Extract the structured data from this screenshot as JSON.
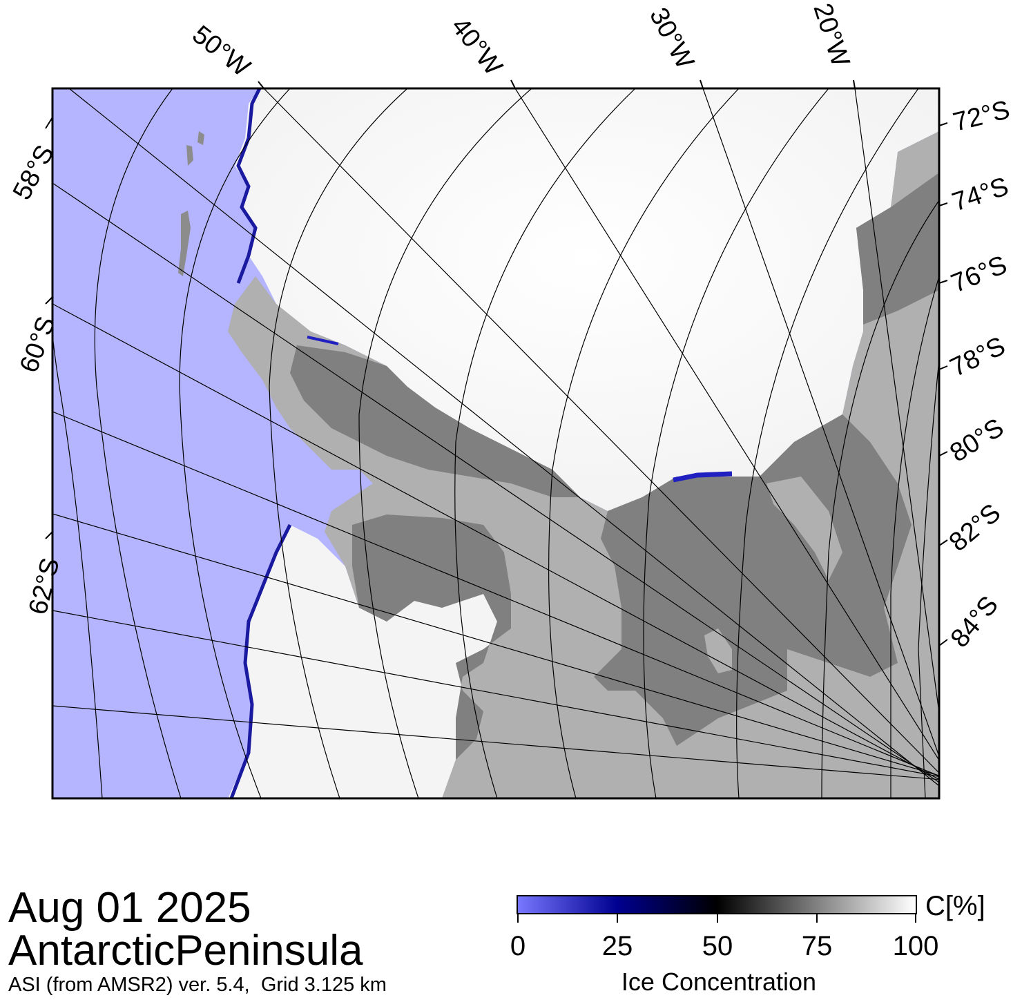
{
  "title": {
    "date": "Aug 01 2025",
    "region": "AntarcticPeninsula",
    "source": "ASI (from AMSR2) ver. 5.4,  Grid 3.125 km"
  },
  "map": {
    "longitude_labels": [
      "50°W",
      "40°W",
      "30°W",
      "20°W"
    ],
    "latitude_labels_left": [
      "58°S",
      "60°S",
      "62°S"
    ],
    "latitude_labels_right": [
      "72°S",
      "74°S",
      "76°S",
      "78°S",
      "80°S",
      "82°S",
      "84°S"
    ],
    "colors": {
      "ocean": "#b4b4ff",
      "ice_full": "#ffffff",
      "land": "#b0b0b0",
      "ice_shelf": "#808080",
      "frame": "#000000"
    }
  },
  "colorbar": {
    "title": "Ice Concentration",
    "unit": "C[%]",
    "ticks": [
      "0",
      "25",
      "50",
      "75",
      "100"
    ],
    "colors": [
      "#7777ff",
      "#000090",
      "#000000",
      "#808080",
      "#ffffff"
    ]
  }
}
